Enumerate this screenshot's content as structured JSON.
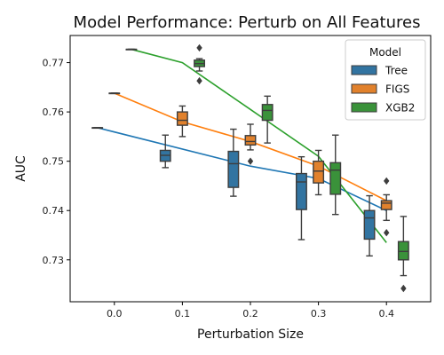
{
  "chart_data": {
    "type": "box",
    "title": "Model Performance: Perturb on All Features",
    "xlabel": "Perturbation Size",
    "ylabel": "AUC",
    "xlim": [
      -0.065,
      0.465
    ],
    "ylim": [
      0.7215,
      0.7755
    ],
    "x_ticks": [
      0.0,
      0.1,
      0.2,
      0.3,
      0.4
    ],
    "x_tick_labels": [
      "0.0",
      "0.1",
      "0.2",
      "0.3",
      "0.4"
    ],
    "y_ticks": [
      0.73,
      0.74,
      0.75,
      0.76,
      0.77
    ],
    "y_tick_labels": [
      "0.73",
      "0.74",
      "0.75",
      "0.76",
      "0.77"
    ],
    "grid": false,
    "legend": {
      "title": "Model",
      "position": "top-right"
    },
    "series": [
      {
        "name": "Tree",
        "color": "#1f77b4",
        "box_fill": "#3274a1",
        "mean_line": [
          [
            -0.025,
            0.7568
          ],
          [
            0.2,
            0.749
          ],
          [
            0.3,
            0.7465
          ],
          [
            0.4,
            0.74
          ]
        ],
        "boxes": [
          {
            "x": 0.0,
            "median": 0.7568,
            "q1": 0.7568,
            "q3": 0.7568,
            "whisker_low": 0.7568,
            "whisker_high": 0.7568,
            "outliers": []
          },
          {
            "x": 0.1,
            "median": 0.7512,
            "q1": 0.75,
            "q3": 0.7522,
            "whisker_low": 0.7487,
            "whisker_high": 0.7553,
            "outliers": []
          },
          {
            "x": 0.2,
            "median": 0.7495,
            "q1": 0.7447,
            "q3": 0.752,
            "whisker_low": 0.7429,
            "whisker_high": 0.7565,
            "outliers": []
          },
          {
            "x": 0.3,
            "median": 0.7458,
            "q1": 0.7402,
            "q3": 0.7475,
            "whisker_low": 0.7341,
            "whisker_high": 0.7509,
            "outliers": []
          },
          {
            "x": 0.4,
            "median": 0.7385,
            "q1": 0.7342,
            "q3": 0.74,
            "whisker_low": 0.7308,
            "whisker_high": 0.743,
            "outliers": []
          }
        ]
      },
      {
        "name": "FIGS",
        "color": "#ff7f0e",
        "box_fill": "#e1812c",
        "mean_line": [
          [
            0.0,
            0.7638
          ],
          [
            0.1,
            0.758
          ],
          [
            0.2,
            0.754
          ],
          [
            0.3,
            0.749
          ],
          [
            0.4,
            0.742
          ]
        ],
        "boxes": [
          {
            "x": 0.0,
            "median": 0.7638,
            "q1": 0.7638,
            "q3": 0.7638,
            "whisker_low": 0.7638,
            "whisker_high": 0.7638,
            "outliers": []
          },
          {
            "x": 0.1,
            "median": 0.7583,
            "q1": 0.7573,
            "q3": 0.76,
            "whisker_low": 0.755,
            "whisker_high": 0.7612,
            "outliers": []
          },
          {
            "x": 0.2,
            "median": 0.754,
            "q1": 0.7533,
            "q3": 0.7552,
            "whisker_low": 0.7523,
            "whisker_high": 0.7575,
            "outliers": [
              0.75
            ]
          },
          {
            "x": 0.3,
            "median": 0.748,
            "q1": 0.7456,
            "q3": 0.75,
            "whisker_low": 0.7432,
            "whisker_high": 0.7522,
            "outliers": []
          },
          {
            "x": 0.4,
            "median": 0.7415,
            "q1": 0.7402,
            "q3": 0.742,
            "whisker_low": 0.738,
            "whisker_high": 0.7432,
            "outliers": [
              0.746,
              0.7355
            ]
          }
        ]
      },
      {
        "name": "XGB2",
        "color": "#2ca02c",
        "box_fill": "#3a923a",
        "mean_line": [
          [
            0.025,
            0.7727
          ],
          [
            0.1,
            0.77
          ],
          [
            0.2,
            0.7605
          ],
          [
            0.3,
            0.751
          ],
          [
            0.4,
            0.7335
          ]
        ],
        "boxes": [
          {
            "x": 0.0,
            "median": 0.7727,
            "q1": 0.7727,
            "q3": 0.7727,
            "whisker_low": 0.7727,
            "whisker_high": 0.7727,
            "outliers": []
          },
          {
            "x": 0.1,
            "median": 0.7698,
            "q1": 0.7692,
            "q3": 0.7705,
            "whisker_low": 0.7683,
            "whisker_high": 0.7708,
            "outliers": [
              0.773,
              0.7663
            ]
          },
          {
            "x": 0.2,
            "median": 0.7603,
            "q1": 0.7583,
            "q3": 0.7615,
            "whisker_low": 0.7537,
            "whisker_high": 0.7632,
            "outliers": []
          },
          {
            "x": 0.3,
            "median": 0.7482,
            "q1": 0.7433,
            "q3": 0.7497,
            "whisker_low": 0.7392,
            "whisker_high": 0.7553,
            "outliers": []
          },
          {
            "x": 0.4,
            "median": 0.7317,
            "q1": 0.73,
            "q3": 0.7337,
            "whisker_low": 0.7268,
            "whisker_high": 0.7388,
            "outliers": [
              0.7242
            ]
          }
        ]
      }
    ]
  }
}
